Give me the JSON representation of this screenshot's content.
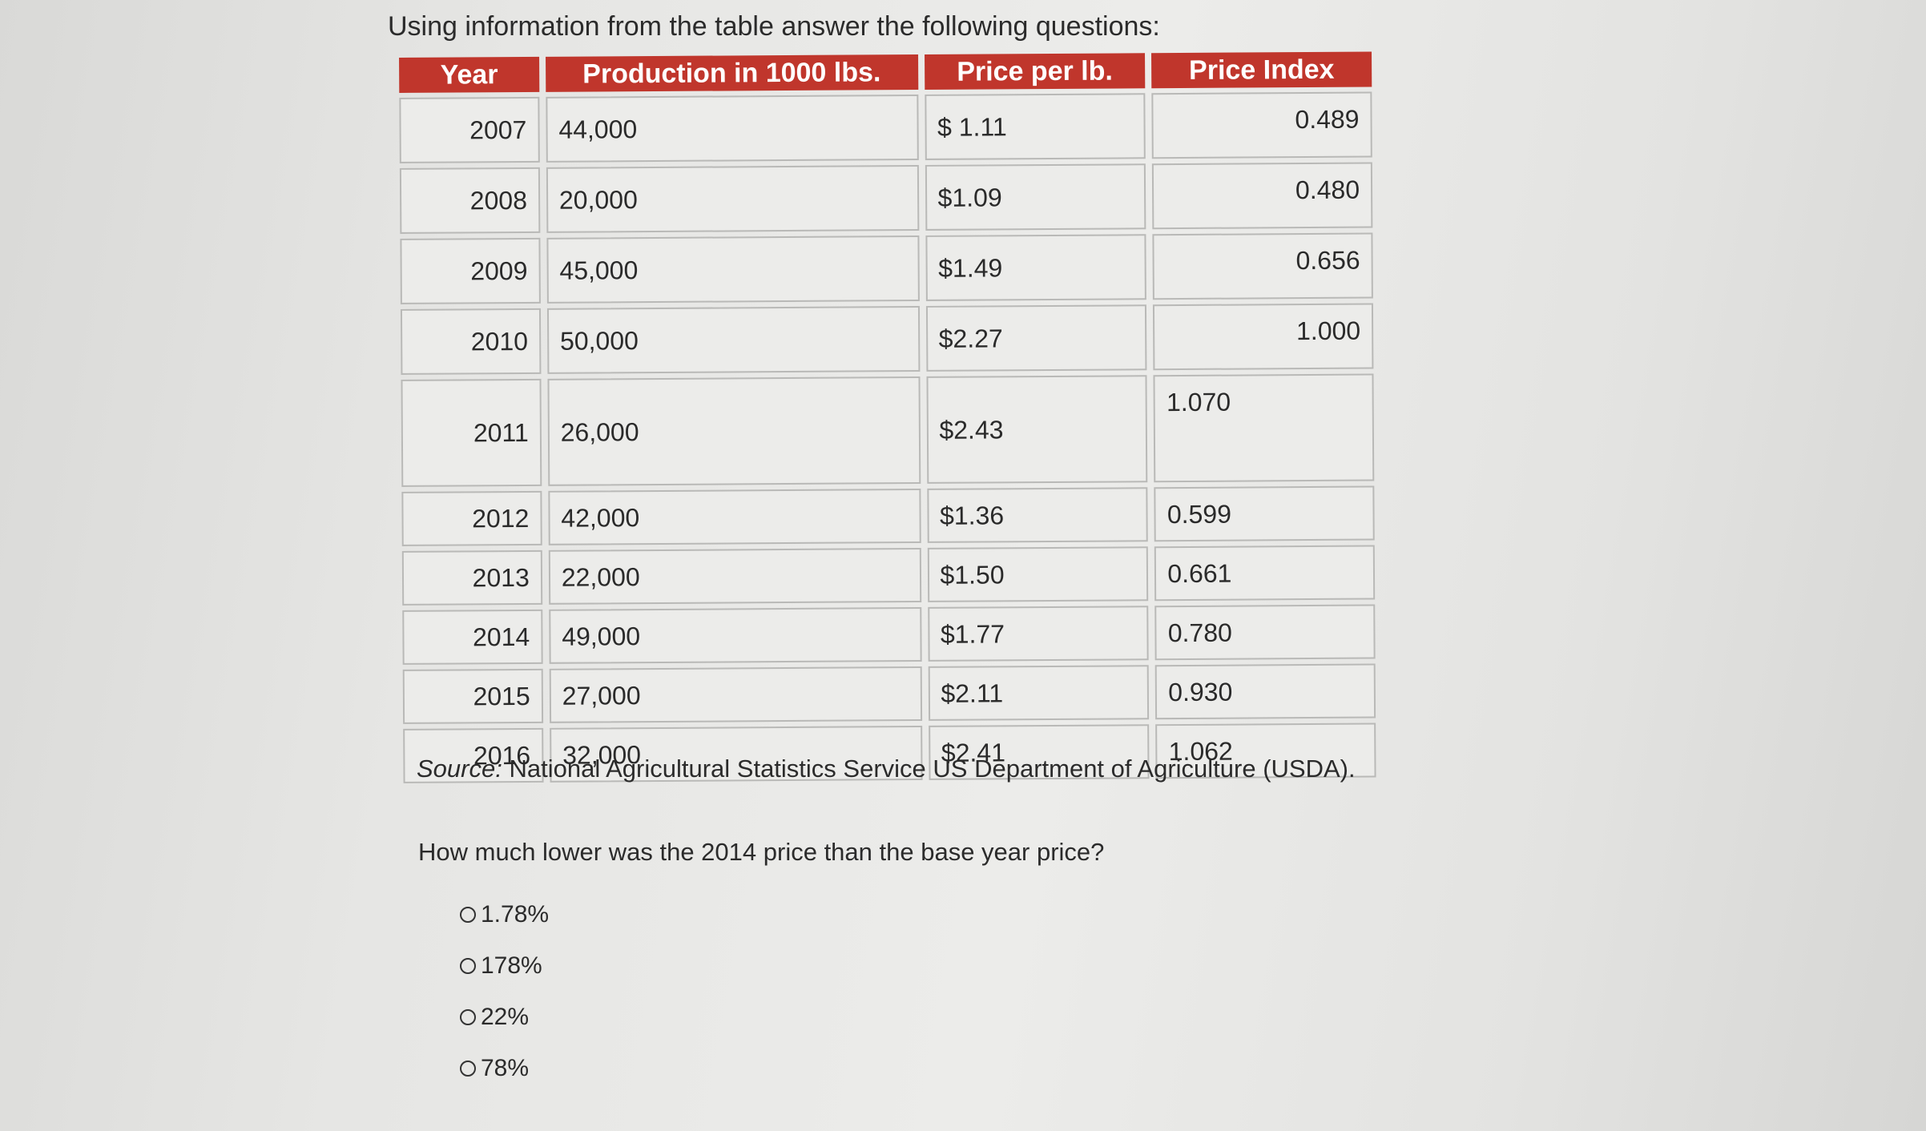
{
  "intro": "Using information from the table answer the following questions:",
  "table": {
    "headers": [
      "Year",
      "Production in 1000 lbs.",
      "Price per lb.",
      "Price Index"
    ],
    "rows": [
      {
        "year": "2007",
        "production": "44,000",
        "price": "$ 1.11",
        "index": "0.489"
      },
      {
        "year": "2008",
        "production": "20,000",
        "price": "$1.09",
        "index": "0.480"
      },
      {
        "year": "2009",
        "production": "45,000",
        "price": "$1.49",
        "index": "0.656"
      },
      {
        "year": "2010",
        "production": "50,000",
        "price": "$2.27",
        "index": "1.000"
      },
      {
        "year": "2011",
        "production": "26,000",
        "price": "$2.43",
        "index": "1.070"
      },
      {
        "year": "2012",
        "production": "42,000",
        "price": "$1.36",
        "index": "0.599"
      },
      {
        "year": "2013",
        "production": "22,000",
        "price": "$1.50",
        "index": "0.661"
      },
      {
        "year": "2014",
        "production": "49,000",
        "price": "$1.77",
        "index": "0.780"
      },
      {
        "year": "2015",
        "production": "27,000",
        "price": "$2.11",
        "index": "0.930"
      },
      {
        "year": "2016",
        "production": "32,000",
        "price": "$2.41",
        "index": "1.062"
      }
    ]
  },
  "source": {
    "label": "Source:",
    "text": "National Agricultural Statistics Service US Department of Agriculture (USDA)."
  },
  "question": "How much lower was the 2014 price than the base year price?",
  "options": [
    "1.78%",
    "178%",
    "22%",
    "78%"
  ]
}
